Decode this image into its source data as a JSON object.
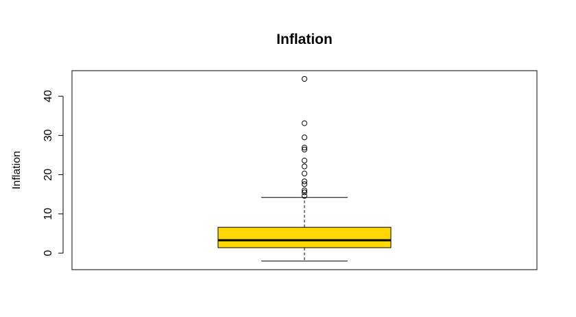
{
  "chart_data": {
    "type": "boxplot",
    "title": "Inflation",
    "xlabel": "",
    "ylabel": "Inflation",
    "ylim": [
      -4.2,
      46.5
    ],
    "yticks": [
      0,
      10,
      20,
      30,
      40
    ],
    "ytick_labels": [
      "0",
      "10",
      "20",
      "30",
      "40"
    ],
    "grid": false,
    "box": {
      "whisker_low": -2.0,
      "q1": 1.4,
      "median": 3.3,
      "q3": 6.6,
      "whisker_high": 14.2
    },
    "outliers": [
      14.6,
      15.5,
      16.0,
      17.6,
      18.3,
      20.3,
      22.1,
      23.6,
      26.4,
      26.9,
      29.5,
      33.1,
      44.4
    ],
    "colors": {
      "box_fill": "#FFD700",
      "stroke": "#000000"
    }
  }
}
